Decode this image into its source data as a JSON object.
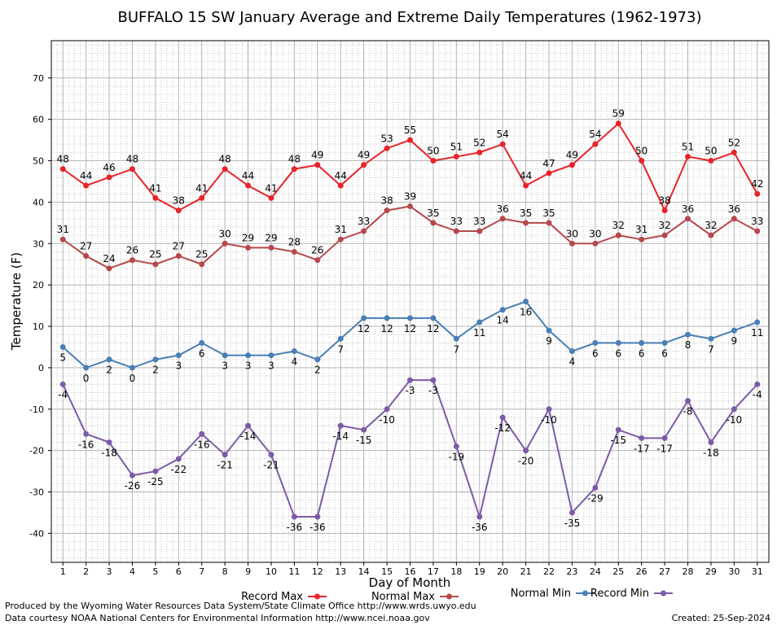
{
  "chart_data": {
    "type": "line",
    "title": "BUFFALO 15 SW January Average and Extreme Daily Temperatures (1962-1973)",
    "xlabel": "Day of Month",
    "ylabel": "Temperature (F)",
    "x": [
      1,
      2,
      3,
      4,
      5,
      6,
      7,
      8,
      9,
      10,
      11,
      12,
      13,
      14,
      15,
      16,
      17,
      18,
      19,
      20,
      21,
      22,
      23,
      24,
      25,
      26,
      27,
      28,
      29,
      30,
      31
    ],
    "ylim": [
      -47,
      79
    ],
    "yticks": [
      -40,
      -30,
      -20,
      -10,
      0,
      10,
      20,
      30,
      40,
      50,
      60,
      70
    ],
    "grid": true,
    "legend_position": "bottom",
    "series": [
      {
        "name": "Record Max",
        "color": "#e8232a",
        "values": [
          48,
          44,
          46,
          48,
          41,
          38,
          41,
          48,
          44,
          41,
          48,
          49,
          44,
          49,
          53,
          55,
          50,
          51,
          52,
          54,
          44,
          47,
          49,
          54,
          59,
          50,
          38,
          51,
          50,
          52,
          42
        ]
      },
      {
        "name": "Normal Max",
        "color": "#b5484c",
        "values": [
          31,
          27,
          24,
          26,
          25,
          27,
          25,
          30,
          29,
          29,
          28,
          26,
          31,
          33,
          38,
          39,
          35,
          33,
          33,
          36,
          35,
          35,
          30,
          30,
          32,
          31,
          32,
          36,
          32,
          36,
          33
        ]
      },
      {
        "name": "Normal Min",
        "color": "#4a7fb5",
        "values": [
          5,
          0,
          2,
          0,
          2,
          3,
          6,
          3,
          3,
          3,
          4,
          2,
          7,
          12,
          12,
          12,
          12,
          7,
          11,
          14,
          16,
          9,
          4,
          6,
          6,
          6,
          6,
          8,
          7,
          9,
          11
        ]
      },
      {
        "name": "Record Min",
        "color": "#7b5ba6",
        "values": [
          -4,
          -16,
          -18,
          -26,
          -25,
          -22,
          -16,
          -21,
          -14,
          -21,
          -36,
          -36,
          -14,
          -15,
          -10,
          -3,
          -3,
          -19,
          -36,
          -12,
          -20,
          -10,
          -35,
          -29,
          -15,
          -17,
          -17,
          -8,
          -18,
          -10,
          -4
        ]
      }
    ]
  },
  "footer": {
    "left_line1": "Produced by the Wyoming Water Resources Data System/State Climate Office http://www.wrds.uwyo.edu",
    "left_line2": "Data courtesy NOAA National Centers for Environmental Information http://www.ncei.noaa.gov",
    "created": "Created:  25-Sep-2024"
  }
}
